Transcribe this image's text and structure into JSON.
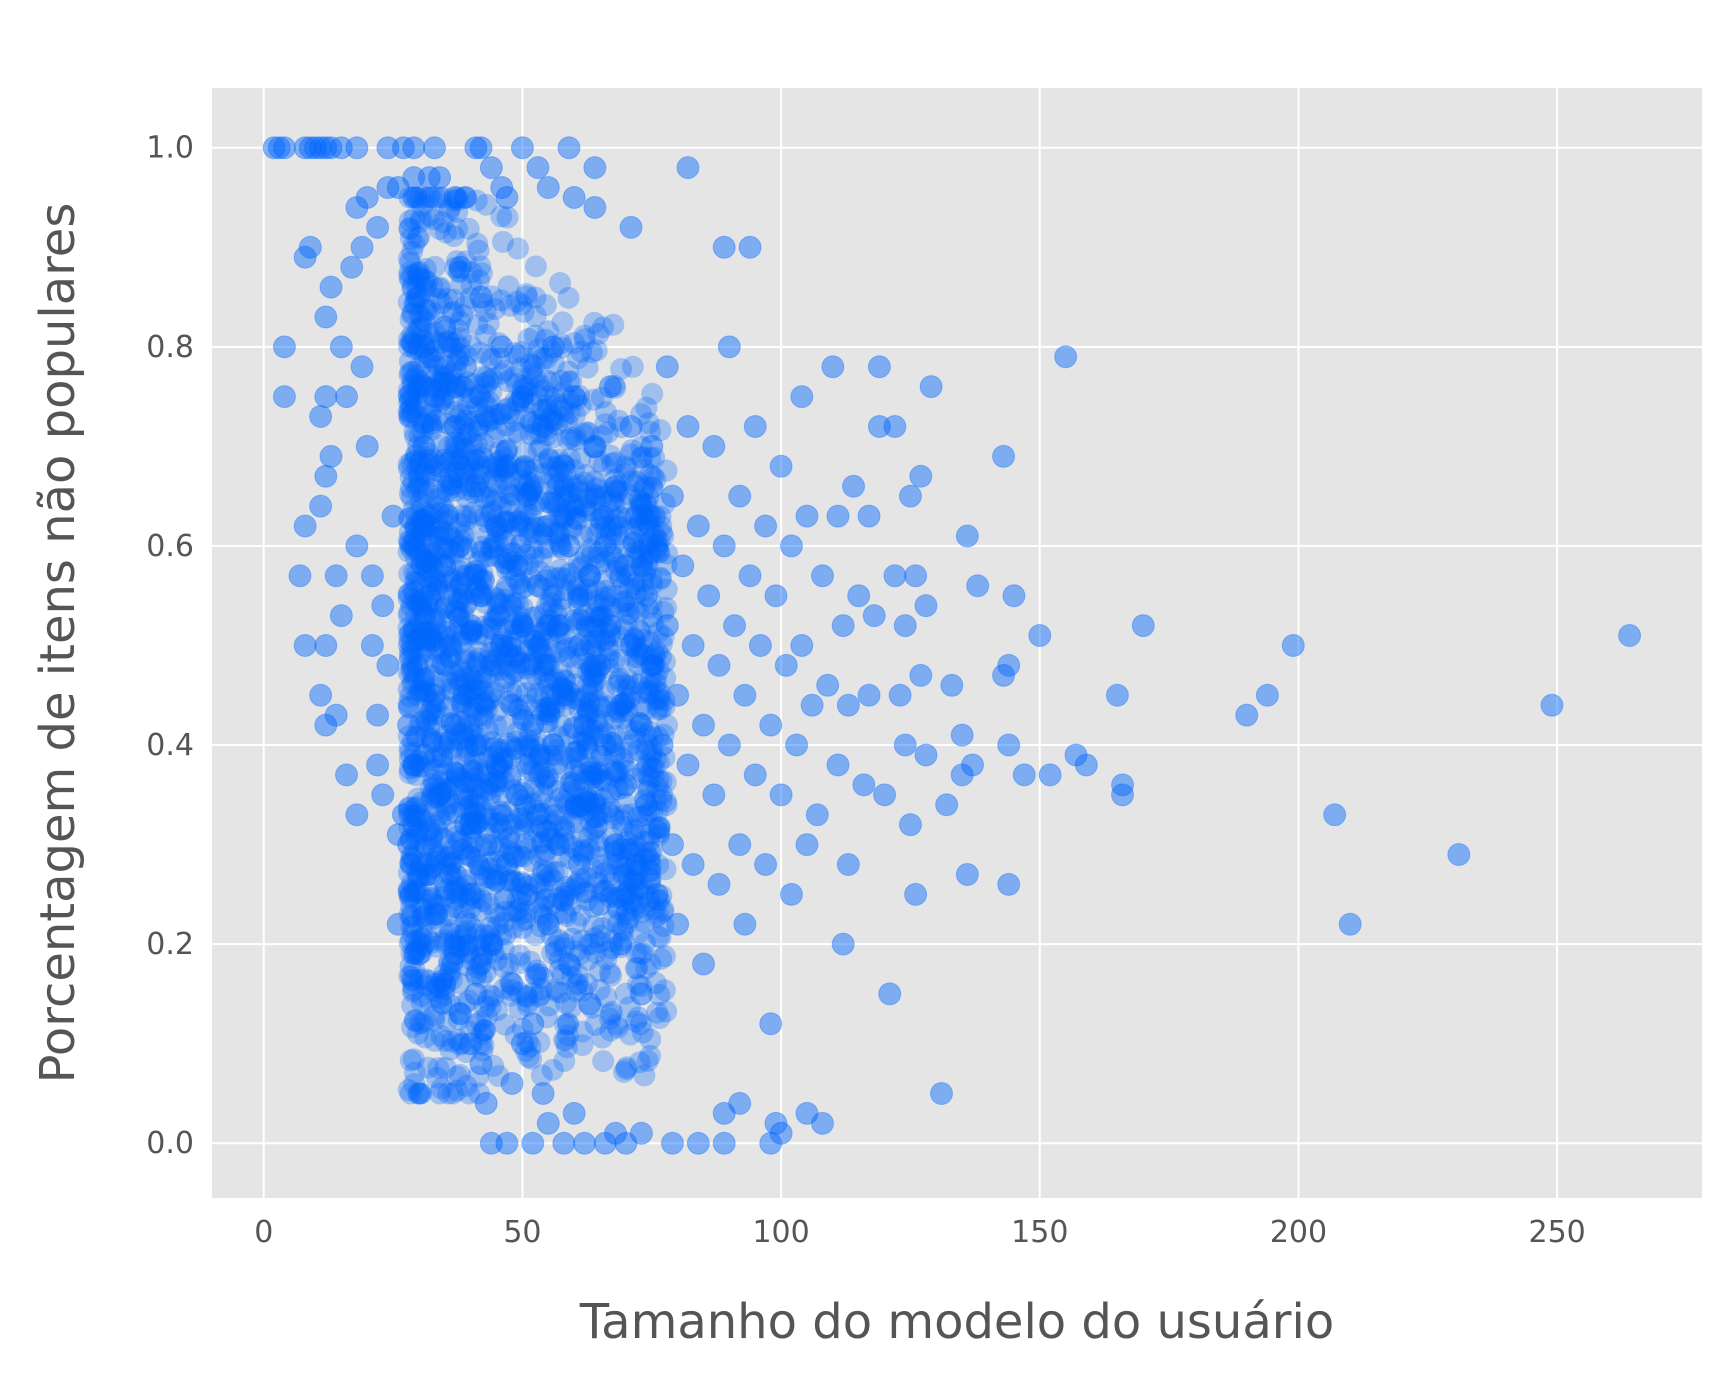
{
  "chart_data": {
    "type": "scatter",
    "title": "",
    "xlabel": "Tamanho do modelo do usuário",
    "ylabel": "Porcentagem de itens não populares",
    "xlim": [
      -10,
      278
    ],
    "ylim": [
      -0.055,
      1.06
    ],
    "x_ticks": [
      0,
      50,
      100,
      150,
      200,
      250
    ],
    "x_tick_labels": [
      "0",
      "50",
      "100",
      "150",
      "200",
      "250"
    ],
    "y_ticks": [
      0.0,
      0.2,
      0.4,
      0.6,
      0.8,
      1.0
    ],
    "y_tick_labels": [
      "0.0",
      "0.2",
      "0.4",
      "0.6",
      "0.8",
      "1.0"
    ],
    "grid": true,
    "style": "ggplot",
    "background": "#e5e5e5",
    "grid_color": "#ffffff",
    "marker_color": "#0066ff",
    "marker_alpha": 0.45,
    "series": [
      {
        "points": [
          [
            2,
            1.0
          ],
          [
            3,
            1.0
          ],
          [
            4,
            1.0
          ],
          [
            8,
            1.0
          ],
          [
            9,
            1.0
          ],
          [
            10,
            1.0
          ],
          [
            11,
            1.0
          ],
          [
            12,
            1.0
          ],
          [
            13,
            1.0
          ],
          [
            15,
            1.0
          ],
          [
            18,
            1.0
          ],
          [
            24,
            1.0
          ],
          [
            27,
            1.0
          ],
          [
            29,
            1.0
          ],
          [
            33,
            1.0
          ],
          [
            41,
            1.0
          ],
          [
            42,
            1.0
          ],
          [
            50,
            1.0
          ],
          [
            59,
            1.0
          ],
          [
            4,
            0.8
          ],
          [
            4,
            0.75
          ],
          [
            9,
            0.9
          ],
          [
            8,
            0.89
          ],
          [
            12,
            0.83
          ],
          [
            13,
            0.86
          ],
          [
            15,
            0.8
          ],
          [
            17,
            0.88
          ],
          [
            19,
            0.9
          ],
          [
            22,
            0.92
          ],
          [
            18,
            0.94
          ],
          [
            20,
            0.95
          ],
          [
            24,
            0.96
          ],
          [
            26,
            0.96
          ],
          [
            29,
            0.97
          ],
          [
            32,
            0.97
          ],
          [
            34,
            0.97
          ],
          [
            37,
            0.95
          ],
          [
            39,
            0.95
          ],
          [
            44,
            0.98
          ],
          [
            46,
            0.96
          ],
          [
            47,
            0.95
          ],
          [
            53,
            0.98
          ],
          [
            55,
            0.96
          ],
          [
            64,
            0.98
          ],
          [
            60,
            0.95
          ],
          [
            64,
            0.94
          ],
          [
            71,
            0.92
          ],
          [
            82,
            0.98
          ],
          [
            89,
            0.9
          ],
          [
            94,
            0.9
          ],
          [
            7,
            0.57
          ],
          [
            8,
            0.5
          ],
          [
            8,
            0.62
          ],
          [
            11,
            0.73
          ],
          [
            11,
            0.64
          ],
          [
            11,
            0.45
          ],
          [
            12,
            0.42
          ],
          [
            12,
            0.5
          ],
          [
            12,
            0.75
          ],
          [
            12,
            0.67
          ],
          [
            13,
            0.69
          ],
          [
            14,
            0.57
          ],
          [
            14,
            0.43
          ],
          [
            15,
            0.53
          ],
          [
            16,
            0.75
          ],
          [
            16,
            0.37
          ],
          [
            18,
            0.33
          ],
          [
            18,
            0.6
          ],
          [
            19,
            0.78
          ],
          [
            20,
            0.7
          ],
          [
            21,
            0.57
          ],
          [
            21,
            0.5
          ],
          [
            22,
            0.43
          ],
          [
            22,
            0.38
          ],
          [
            23,
            0.35
          ],
          [
            23,
            0.54
          ],
          [
            24,
            0.48
          ],
          [
            25,
            0.63
          ],
          [
            26,
            0.31
          ],
          [
            26,
            0.22
          ],
          [
            27,
            0.33
          ],
          [
            28,
            0.42
          ],
          [
            28,
            0.3
          ],
          [
            29,
            0.38
          ],
          [
            30,
            0.19
          ],
          [
            31,
            0.39
          ],
          [
            32,
            0.27
          ],
          [
            33,
            0.23
          ],
          [
            35,
            0.16
          ],
          [
            37,
            0.19
          ],
          [
            38,
            0.13
          ],
          [
            40,
            0.1
          ],
          [
            41,
            0.15
          ],
          [
            42,
            0.08
          ],
          [
            43,
            0.04
          ],
          [
            44,
            0.0
          ],
          [
            47,
            0.0
          ],
          [
            48,
            0.06
          ],
          [
            50,
            0.1
          ],
          [
            52,
            0.0
          ],
          [
            54,
            0.05
          ],
          [
            55,
            0.02
          ],
          [
            58,
            0.0
          ],
          [
            60,
            0.03
          ],
          [
            62,
            0.0
          ],
          [
            66,
            0.0
          ],
          [
            68,
            0.01
          ],
          [
            70,
            0.0
          ],
          [
            73,
            0.01
          ],
          [
            79,
            0.0
          ],
          [
            84,
            0.0
          ],
          [
            89,
            0.0
          ],
          [
            89,
            0.03
          ],
          [
            92,
            0.04
          ],
          [
            98,
            0.0
          ],
          [
            100,
            0.01
          ],
          [
            99,
            0.02
          ],
          [
            105,
            0.03
          ],
          [
            108,
            0.02
          ],
          [
            30,
            0.85
          ],
          [
            31,
            0.8
          ],
          [
            31,
            0.7
          ],
          [
            32,
            0.62
          ],
          [
            32,
            0.55
          ],
          [
            33,
            0.75
          ],
          [
            33,
            0.45
          ],
          [
            34,
            0.68
          ],
          [
            34,
            0.35
          ],
          [
            35,
            0.82
          ],
          [
            35,
            0.58
          ],
          [
            36,
            0.5
          ],
          [
            36,
            0.28
          ],
          [
            37,
            0.72
          ],
          [
            37,
            0.42
          ],
          [
            38,
            0.88
          ],
          [
            38,
            0.6
          ],
          [
            39,
            0.32
          ],
          [
            39,
            0.78
          ],
          [
            40,
            0.52
          ],
          [
            40,
            0.25
          ],
          [
            41,
            0.66
          ],
          [
            41,
            0.4
          ],
          [
            42,
            0.85
          ],
          [
            42,
            0.55
          ],
          [
            43,
            0.3
          ],
          [
            43,
            0.73
          ],
          [
            44,
            0.48
          ],
          [
            44,
            0.2
          ],
          [
            45,
            0.62
          ],
          [
            45,
            0.38
          ],
          [
            46,
            0.8
          ],
          [
            46,
            0.5
          ],
          [
            47,
            0.28
          ],
          [
            47,
            0.68
          ],
          [
            48,
            0.44
          ],
          [
            48,
            0.16
          ],
          [
            49,
            0.58
          ],
          [
            49,
            0.35
          ],
          [
            50,
            0.75
          ],
          [
            50,
            0.52
          ],
          [
            51,
            0.25
          ],
          [
            51,
            0.65
          ],
          [
            52,
            0.42
          ],
          [
            52,
            0.12
          ],
          [
            53,
            0.56
          ],
          [
            53,
            0.33
          ],
          [
            54,
            0.72
          ],
          [
            54,
            0.48
          ],
          [
            55,
            0.22
          ],
          [
            55,
            0.62
          ],
          [
            56,
            0.4
          ],
          [
            56,
            0.8
          ],
          [
            57,
            0.52
          ],
          [
            57,
            0.3
          ],
          [
            58,
            0.68
          ],
          [
            58,
            0.45
          ],
          [
            59,
            0.18
          ],
          [
            59,
            0.6
          ],
          [
            60,
            0.36
          ],
          [
            60,
            0.75
          ],
          [
            61,
            0.5
          ],
          [
            61,
            0.28
          ],
          [
            62,
            0.64
          ],
          [
            62,
            0.42
          ],
          [
            63,
            0.14
          ],
          [
            63,
            0.57
          ],
          [
            64,
            0.34
          ],
          [
            64,
            0.7
          ],
          [
            65,
            0.48
          ],
          [
            65,
            0.24
          ],
          [
            66,
            0.6
          ],
          [
            66,
            0.4
          ],
          [
            67,
            0.76
          ],
          [
            67,
            0.52
          ],
          [
            68,
            0.3
          ],
          [
            68,
            0.66
          ],
          [
            69,
            0.44
          ],
          [
            69,
            0.2
          ],
          [
            70,
            0.58
          ],
          [
            70,
            0.36
          ],
          [
            71,
            0.72
          ],
          [
            71,
            0.5
          ],
          [
            72,
            0.28
          ],
          [
            72,
            0.63
          ],
          [
            73,
            0.42
          ],
          [
            73,
            0.15
          ],
          [
            74,
            0.55
          ],
          [
            74,
            0.34
          ],
          [
            75,
            0.7
          ],
          [
            75,
            0.48
          ],
          [
            76,
            0.25
          ],
          [
            76,
            0.6
          ],
          [
            77,
            0.4
          ],
          [
            78,
            0.78
          ],
          [
            78,
            0.52
          ],
          [
            79,
            0.3
          ],
          [
            79,
            0.65
          ],
          [
            80,
            0.45
          ],
          [
            80,
            0.22
          ],
          [
            81,
            0.58
          ],
          [
            82,
            0.38
          ],
          [
            82,
            0.72
          ],
          [
            83,
            0.5
          ],
          [
            83,
            0.28
          ],
          [
            84,
            0.62
          ],
          [
            85,
            0.42
          ],
          [
            85,
            0.18
          ],
          [
            86,
            0.55
          ],
          [
            87,
            0.35
          ],
          [
            87,
            0.7
          ],
          [
            88,
            0.48
          ],
          [
            88,
            0.26
          ],
          [
            89,
            0.6
          ],
          [
            90,
            0.4
          ],
          [
            90,
            0.8
          ],
          [
            91,
            0.52
          ],
          [
            92,
            0.3
          ],
          [
            92,
            0.65
          ],
          [
            93,
            0.45
          ],
          [
            93,
            0.22
          ],
          [
            94,
            0.57
          ],
          [
            95,
            0.37
          ],
          [
            95,
            0.72
          ],
          [
            96,
            0.5
          ],
          [
            97,
            0.28
          ],
          [
            97,
            0.62
          ],
          [
            98,
            0.42
          ],
          [
            98,
            0.12
          ],
          [
            99,
            0.55
          ],
          [
            100,
            0.35
          ],
          [
            100,
            0.68
          ],
          [
            101,
            0.48
          ],
          [
            102,
            0.25
          ],
          [
            102,
            0.6
          ],
          [
            103,
            0.4
          ],
          [
            104,
            0.75
          ],
          [
            104,
            0.5
          ],
          [
            105,
            0.3
          ],
          [
            105,
            0.63
          ],
          [
            106,
            0.44
          ],
          [
            107,
            0.33
          ],
          [
            108,
            0.57
          ],
          [
            109,
            0.46
          ],
          [
            110,
            0.78
          ],
          [
            111,
            0.38
          ],
          [
            111,
            0.63
          ],
          [
            112,
            0.2
          ],
          [
            112,
            0.52
          ],
          [
            113,
            0.44
          ],
          [
            113,
            0.28
          ],
          [
            114,
            0.66
          ],
          [
            115,
            0.55
          ],
          [
            116,
            0.36
          ],
          [
            117,
            0.63
          ],
          [
            117,
            0.45
          ],
          [
            118,
            0.53
          ],
          [
            119,
            0.78
          ],
          [
            119,
            0.72
          ],
          [
            120,
            0.35
          ],
          [
            121,
            0.15
          ],
          [
            122,
            0.72
          ],
          [
            122,
            0.57
          ],
          [
            123,
            0.45
          ],
          [
            124,
            0.52
          ],
          [
            124,
            0.4
          ],
          [
            125,
            0.32
          ],
          [
            125,
            0.65
          ],
          [
            126,
            0.25
          ],
          [
            126,
            0.57
          ],
          [
            127,
            0.67
          ],
          [
            127,
            0.47
          ],
          [
            128,
            0.39
          ],
          [
            128,
            0.54
          ],
          [
            129,
            0.76
          ],
          [
            131,
            0.05
          ],
          [
            132,
            0.34
          ],
          [
            133,
            0.46
          ],
          [
            135,
            0.37
          ],
          [
            135,
            0.41
          ],
          [
            136,
            0.61
          ],
          [
            136,
            0.27
          ],
          [
            137,
            0.38
          ],
          [
            138,
            0.56
          ],
          [
            143,
            0.69
          ],
          [
            143,
            0.47
          ],
          [
            144,
            0.48
          ],
          [
            144,
            0.4
          ],
          [
            144,
            0.26
          ],
          [
            145,
            0.55
          ],
          [
            147,
            0.37
          ],
          [
            150,
            0.51
          ],
          [
            152,
            0.37
          ],
          [
            155,
            0.79
          ],
          [
            157,
            0.39
          ],
          [
            159,
            0.38
          ],
          [
            165,
            0.45
          ],
          [
            166,
            0.36
          ],
          [
            166,
            0.35
          ],
          [
            170,
            0.52
          ],
          [
            190,
            0.43
          ],
          [
            194,
            0.45
          ],
          [
            199,
            0.5
          ],
          [
            207,
            0.33
          ],
          [
            210,
            0.22
          ],
          [
            231,
            0.29
          ],
          [
            249,
            0.44
          ],
          [
            264,
            0.51
          ]
        ]
      }
    ]
  }
}
